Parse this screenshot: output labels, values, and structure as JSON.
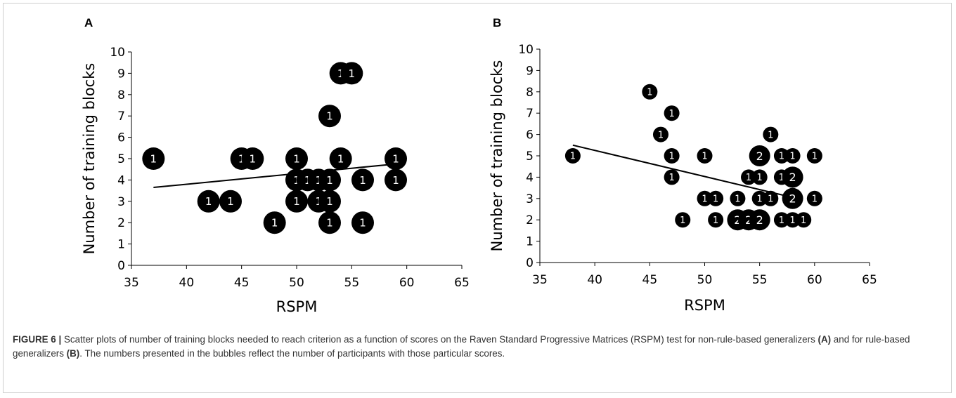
{
  "caption": {
    "label": "FIGURE 6 |",
    "text_1": " Scatter plots of number of training blocks needed to reach criterion as a function of scores on the Raven Standard Progressive Matrices (RSPM) test for non-rule-based generalizers ",
    "ref_a": "(A)",
    "text_2": " and for rule-based generalizers ",
    "ref_b": "(B)",
    "text_3": ". The numbers presented in the bubbles reflect the number of participants with those particular scores."
  },
  "colors": {
    "bubble": "#000000",
    "bubble_text": "#ffffff",
    "axis": "#000000"
  },
  "chart_data": [
    {
      "panel": "A",
      "type": "scatter",
      "xlabel": "RSPM",
      "ylabel": "Number of training blocks",
      "xlim": [
        35,
        65
      ],
      "ylim": [
        0,
        10
      ],
      "xticks": [
        35,
        40,
        45,
        50,
        55,
        60,
        65
      ],
      "yticks": [
        0,
        1,
        2,
        3,
        4,
        5,
        6,
        7,
        8,
        9,
        10
      ],
      "trendline": {
        "x": [
          37,
          59
        ],
        "y": [
          3.65,
          4.75
        ]
      },
      "points": [
        {
          "x": 37,
          "y": 5,
          "count": 1
        },
        {
          "x": 45,
          "y": 5,
          "count": 1
        },
        {
          "x": 46,
          "y": 5,
          "count": 1
        },
        {
          "x": 50,
          "y": 5,
          "count": 1
        },
        {
          "x": 54,
          "y": 5,
          "count": 1
        },
        {
          "x": 59,
          "y": 5,
          "count": 1
        },
        {
          "x": 54,
          "y": 9,
          "count": 1
        },
        {
          "x": 55,
          "y": 9,
          "count": 1
        },
        {
          "x": 53,
          "y": 7,
          "count": 1
        },
        {
          "x": 50,
          "y": 4,
          "count": 1
        },
        {
          "x": 51,
          "y": 4,
          "count": 1
        },
        {
          "x": 52,
          "y": 4,
          "count": 1
        },
        {
          "x": 53,
          "y": 4,
          "count": 1
        },
        {
          "x": 56,
          "y": 4,
          "count": 1
        },
        {
          "x": 59,
          "y": 4,
          "count": 1
        },
        {
          "x": 42,
          "y": 3,
          "count": 1
        },
        {
          "x": 44,
          "y": 3,
          "count": 1
        },
        {
          "x": 50,
          "y": 3,
          "count": 1
        },
        {
          "x": 52,
          "y": 3,
          "count": 1
        },
        {
          "x": 53,
          "y": 3,
          "count": 1
        },
        {
          "x": 48,
          "y": 2,
          "count": 1
        },
        {
          "x": 53,
          "y": 2,
          "count": 1
        },
        {
          "x": 56,
          "y": 2,
          "count": 1
        }
      ]
    },
    {
      "panel": "B",
      "type": "scatter",
      "xlabel": "RSPM",
      "ylabel": "Number of training blocks",
      "xlim": [
        35,
        65
      ],
      "ylim": [
        0,
        10
      ],
      "xticks": [
        35,
        40,
        45,
        50,
        55,
        60,
        65
      ],
      "yticks": [
        0,
        1,
        2,
        3,
        4,
        5,
        6,
        7,
        8,
        9,
        10
      ],
      "trendline": {
        "x": [
          38,
          58
        ],
        "y": [
          5.5,
          3.05
        ]
      },
      "points": [
        {
          "x": 45,
          "y": 8,
          "count": 1
        },
        {
          "x": 47,
          "y": 7,
          "count": 1
        },
        {
          "x": 46,
          "y": 6,
          "count": 1
        },
        {
          "x": 56,
          "y": 6,
          "count": 1
        },
        {
          "x": 38,
          "y": 5,
          "count": 1
        },
        {
          "x": 47,
          "y": 5,
          "count": 1
        },
        {
          "x": 50,
          "y": 5,
          "count": 1
        },
        {
          "x": 55,
          "y": 5,
          "count": 2
        },
        {
          "x": 57,
          "y": 5,
          "count": 1
        },
        {
          "x": 58,
          "y": 5,
          "count": 1
        },
        {
          "x": 60,
          "y": 5,
          "count": 1
        },
        {
          "x": 47,
          "y": 4,
          "count": 1
        },
        {
          "x": 54,
          "y": 4,
          "count": 1
        },
        {
          "x": 55,
          "y": 4,
          "count": 1
        },
        {
          "x": 57,
          "y": 4,
          "count": 1
        },
        {
          "x": 58,
          "y": 4,
          "count": 2
        },
        {
          "x": 50,
          "y": 3,
          "count": 1
        },
        {
          "x": 51,
          "y": 3,
          "count": 1
        },
        {
          "x": 53,
          "y": 3,
          "count": 1
        },
        {
          "x": 55,
          "y": 3,
          "count": 1
        },
        {
          "x": 56,
          "y": 3,
          "count": 1
        },
        {
          "x": 58,
          "y": 3,
          "count": 2
        },
        {
          "x": 60,
          "y": 3,
          "count": 1
        },
        {
          "x": 48,
          "y": 2,
          "count": 1
        },
        {
          "x": 51,
          "y": 2,
          "count": 1
        },
        {
          "x": 53,
          "y": 2,
          "count": 2
        },
        {
          "x": 54,
          "y": 2,
          "count": 2
        },
        {
          "x": 55,
          "y": 2,
          "count": 2
        },
        {
          "x": 57,
          "y": 2,
          "count": 1
        },
        {
          "x": 58,
          "y": 2,
          "count": 1
        },
        {
          "x": 59,
          "y": 2,
          "count": 1
        }
      ]
    }
  ]
}
